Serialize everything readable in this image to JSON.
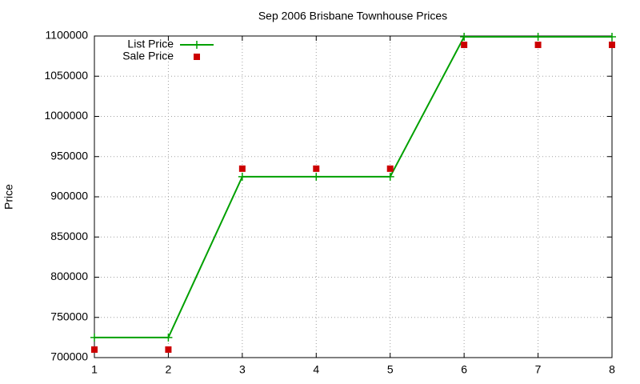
{
  "chart_data": {
    "type": "line",
    "title": "Sep 2006 Brisbane Townhouse Prices",
    "ylabel": "Price",
    "x": [
      1,
      2,
      3,
      4,
      5,
      6,
      7,
      8
    ],
    "series": [
      {
        "name": "List Price",
        "color": "#00a000",
        "mode": "lines+markers",
        "marker": "plus",
        "values": [
          725000,
          725000,
          925000,
          925000,
          925000,
          1099000,
          1099000,
          1099000
        ]
      },
      {
        "name": "Sale Price",
        "color": "#cc0000",
        "mode": "markers",
        "marker": "square",
        "values": [
          710000,
          710000,
          935000,
          935000,
          935000,
          1089000,
          1089000,
          1089000
        ]
      }
    ],
    "xlim": [
      1,
      8
    ],
    "xticks": [
      1,
      2,
      3,
      4,
      5,
      6,
      7,
      8
    ],
    "ylim": [
      700000,
      1100000
    ],
    "yticks": [
      700000,
      750000,
      800000,
      850000,
      900000,
      950000,
      1000000,
      1050000,
      1100000
    ],
    "grid": true,
    "legend": "top-left"
  }
}
